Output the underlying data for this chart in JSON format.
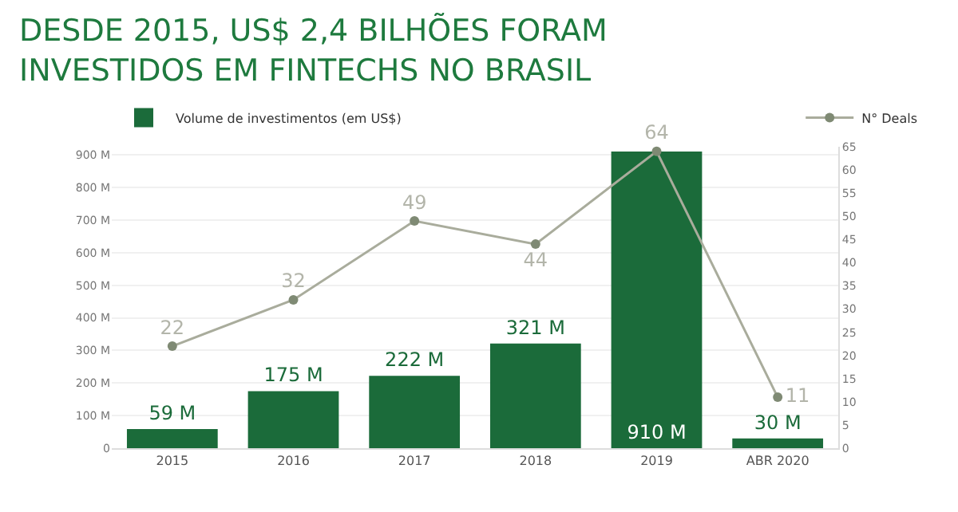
{
  "chart_data": {
    "type": "bar",
    "title": "DESDE 2015, US$ 2,4 BILHÕES FORAM\nINVESTIDOS EM FINTECHS NO BRASIL",
    "categories": [
      "2015",
      "2016",
      "2017",
      "2018",
      "2019",
      "ABR 2020"
    ],
    "series": [
      {
        "name": "Volume de investimentos (em US$)",
        "color": "#1b6b3a",
        "values": [
          59,
          175,
          222,
          321,
          910,
          30
        ],
        "value_labels": [
          "59 M",
          "175 M",
          "222 M",
          "321 M",
          "910 M",
          "30 M"
        ]
      },
      {
        "name": "N° Deals",
        "type": "line",
        "axis": "y2",
        "color": "#a9ac9c",
        "values": [
          22,
          32,
          49,
          44,
          64,
          11
        ],
        "data_labels": true,
        "marker": "circle"
      }
    ],
    "ylim": [
      0,
      925
    ],
    "yticks": [
      {
        "value": 0,
        "label": "0"
      },
      {
        "value": 100,
        "label": "100 M"
      },
      {
        "value": 200,
        "label": "200 M"
      },
      {
        "value": 300,
        "label": "300 M"
      },
      {
        "value": 400,
        "label": "400 M"
      },
      {
        "value": 500,
        "label": "500 M"
      },
      {
        "value": 600,
        "label": "600 M"
      },
      {
        "value": 700,
        "label": "700 M"
      },
      {
        "value": 800,
        "label": "800 M"
      },
      {
        "value": 900,
        "label": "900 M"
      }
    ],
    "y2lim": [
      0,
      65
    ],
    "y2ticks": [
      0,
      5,
      10,
      15,
      20,
      25,
      30,
      35,
      40,
      45,
      50,
      55,
      60,
      65
    ],
    "grid": "y",
    "legend": "top"
  }
}
